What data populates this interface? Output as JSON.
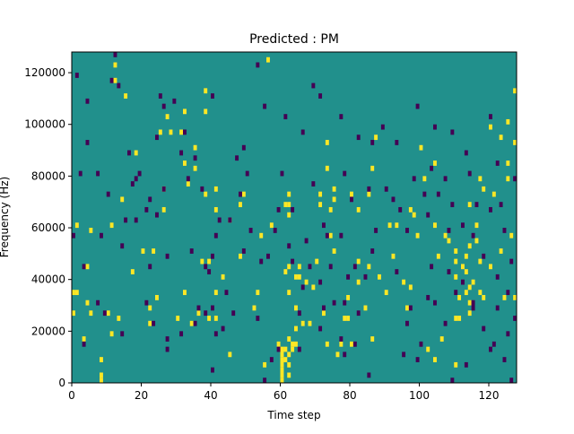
{
  "chart_data": {
    "type": "heatmap",
    "title": "Predicted : PM",
    "xlabel": "Time step",
    "ylabel": "Frequency (Hz)",
    "xlim": [
      0,
      128
    ],
    "ylim": [
      0,
      128000
    ],
    "x_ticks": [
      0,
      20,
      40,
      60,
      80,
      100,
      120
    ],
    "y_ticks": [
      0,
      20000,
      40000,
      60000,
      80000,
      100000,
      120000
    ],
    "x_tick_labels": [
      "0",
      "20",
      "40",
      "60",
      "80",
      "100",
      "120"
    ],
    "y_tick_labels": [
      "0",
      "20000",
      "40000",
      "60000",
      "80000",
      "100000",
      "120000"
    ],
    "n_time_steps": 128,
    "n_freq_bins": 64,
    "freq_bin_hz": 2000,
    "colors": {
      "background": "#21908c",
      "high": "#fde725",
      "low": "#440154"
    },
    "cell_values": {
      "background": 0,
      "high": 1,
      "low": -1
    },
    "high_cells": [
      [
        0,
        13
      ],
      [
        0,
        17
      ],
      [
        1,
        17
      ],
      [
        1,
        30
      ],
      [
        3,
        8
      ],
      [
        4,
        15
      ],
      [
        4,
        22
      ],
      [
        5,
        13
      ],
      [
        5,
        29
      ],
      [
        8,
        0
      ],
      [
        8,
        1
      ],
      [
        8,
        4
      ],
      [
        10,
        13
      ],
      [
        11,
        9
      ],
      [
        11,
        30
      ],
      [
        12,
        58
      ],
      [
        12,
        61
      ],
      [
        13,
        12
      ],
      [
        14,
        35
      ],
      [
        15,
        55
      ],
      [
        17,
        21
      ],
      [
        18,
        44
      ],
      [
        20,
        25
      ],
      [
        22,
        11
      ],
      [
        22,
        14
      ],
      [
        23,
        25
      ],
      [
        24,
        16
      ],
      [
        25,
        48
      ],
      [
        26,
        33
      ],
      [
        26,
        37
      ],
      [
        27,
        51
      ],
      [
        28,
        48
      ],
      [
        30,
        12
      ],
      [
        31,
        48
      ],
      [
        32,
        17
      ],
      [
        32,
        42
      ],
      [
        32,
        52
      ],
      [
        33,
        38
      ],
      [
        34,
        11
      ],
      [
        35,
        41
      ],
      [
        35,
        45
      ],
      [
        36,
        13
      ],
      [
        37,
        23
      ],
      [
        38,
        36
      ],
      [
        38,
        52
      ],
      [
        38,
        56
      ],
      [
        39,
        12
      ],
      [
        39,
        23
      ],
      [
        41,
        33
      ],
      [
        41,
        12
      ],
      [
        41,
        17
      ],
      [
        41,
        37
      ],
      [
        43,
        20
      ],
      [
        45,
        5
      ],
      [
        45,
        31
      ],
      [
        48,
        24
      ],
      [
        48,
        34
      ],
      [
        49,
        36
      ],
      [
        52,
        14
      ],
      [
        53,
        17
      ],
      [
        54,
        28
      ],
      [
        55,
        3
      ],
      [
        56,
        62
      ],
      [
        57,
        30
      ],
      [
        59,
        7
      ],
      [
        60,
        0
      ],
      [
        60,
        1
      ],
      [
        60,
        2
      ],
      [
        60,
        3
      ],
      [
        60,
        4
      ],
      [
        60,
        5
      ],
      [
        60,
        6
      ],
      [
        61,
        4
      ],
      [
        61,
        6
      ],
      [
        61,
        21
      ],
      [
        61,
        34
      ],
      [
        62,
        8
      ],
      [
        62,
        17
      ],
      [
        62,
        22
      ],
      [
        62,
        32
      ],
      [
        62,
        34
      ],
      [
        62,
        36
      ],
      [
        62,
        1
      ],
      [
        62,
        3
      ],
      [
        62,
        5
      ],
      [
        63,
        6
      ],
      [
        63,
        7
      ],
      [
        64,
        7
      ],
      [
        64,
        10
      ],
      [
        64,
        14
      ],
      [
        64,
        20
      ],
      [
        65,
        20
      ],
      [
        65,
        22
      ],
      [
        66,
        11
      ],
      [
        67,
        19
      ],
      [
        68,
        11
      ],
      [
        69,
        18
      ],
      [
        70,
        23
      ],
      [
        71,
        34
      ],
      [
        71,
        36
      ],
      [
        72,
        13
      ],
      [
        73,
        41
      ],
      [
        73,
        46
      ],
      [
        73,
        7
      ],
      [
        74,
        28
      ],
      [
        74,
        33
      ],
      [
        75,
        37
      ],
      [
        75,
        25
      ],
      [
        75,
        35
      ],
      [
        76,
        5
      ],
      [
        77,
        7
      ],
      [
        78,
        12
      ],
      [
        79,
        12
      ],
      [
        79,
        16
      ],
      [
        80,
        7
      ],
      [
        80,
        36
      ],
      [
        82,
        23
      ],
      [
        82,
        19
      ],
      [
        82,
        33
      ],
      [
        84,
        14
      ],
      [
        85,
        36
      ],
      [
        85,
        22
      ],
      [
        86,
        41
      ],
      [
        86,
        8
      ],
      [
        87,
        47
      ],
      [
        88,
        20
      ],
      [
        90,
        17
      ],
      [
        91,
        30
      ],
      [
        92,
        24
      ],
      [
        93,
        30
      ],
      [
        95,
        19
      ],
      [
        96,
        14
      ],
      [
        97,
        33
      ],
      [
        97,
        18
      ],
      [
        98,
        32
      ],
      [
        99,
        28
      ],
      [
        100,
        45
      ],
      [
        101,
        39
      ],
      [
        102,
        6
      ],
      [
        104,
        4
      ],
      [
        104,
        30
      ],
      [
        104,
        42
      ],
      [
        105,
        24
      ],
      [
        106,
        8
      ],
      [
        107,
        28
      ],
      [
        108,
        27
      ],
      [
        110,
        3
      ],
      [
        110,
        12
      ],
      [
        110,
        20
      ],
      [
        110,
        23
      ],
      [
        110,
        25
      ],
      [
        111,
        16
      ],
      [
        111,
        12
      ],
      [
        112,
        22
      ],
      [
        113,
        17
      ],
      [
        113,
        21
      ],
      [
        113,
        24
      ],
      [
        114,
        13
      ],
      [
        114,
        15
      ],
      [
        114,
        26
      ],
      [
        114,
        18
      ],
      [
        114,
        34
      ],
      [
        115,
        19
      ],
      [
        116,
        27
      ],
      [
        116,
        30
      ],
      [
        117,
        23
      ],
      [
        117,
        17
      ],
      [
        117,
        39
      ],
      [
        118,
        16
      ],
      [
        118,
        37
      ],
      [
        120,
        22
      ],
      [
        120,
        49
      ],
      [
        121,
        36
      ],
      [
        123,
        47
      ],
      [
        123,
        25
      ],
      [
        124,
        16
      ],
      [
        125,
        42
      ],
      [
        125,
        39
      ],
      [
        125,
        50
      ],
      [
        126,
        28
      ],
      [
        127,
        46
      ],
      [
        127,
        56
      ],
      [
        127,
        16
      ]
    ],
    "low_cells": [
      [
        0,
        28
      ],
      [
        1,
        59
      ],
      [
        2,
        40
      ],
      [
        3,
        22
      ],
      [
        3,
        7
      ],
      [
        4,
        46
      ],
      [
        4,
        54
      ],
      [
        7,
        40
      ],
      [
        7,
        15
      ],
      [
        8,
        28
      ],
      [
        9,
        13
      ],
      [
        10,
        36
      ],
      [
        11,
        58
      ],
      [
        12,
        63
      ],
      [
        13,
        57
      ],
      [
        14,
        9
      ],
      [
        14,
        26
      ],
      [
        15,
        31
      ],
      [
        16,
        44
      ],
      [
        17,
        38
      ],
      [
        18,
        39
      ],
      [
        18,
        31
      ],
      [
        19,
        40
      ],
      [
        21,
        33
      ],
      [
        21,
        15
      ],
      [
        22,
        35
      ],
      [
        22,
        22
      ],
      [
        23,
        11
      ],
      [
        24,
        32
      ],
      [
        24,
        47
      ],
      [
        25,
        55
      ],
      [
        26,
        37
      ],
      [
        26,
        53
      ],
      [
        27,
        6
      ],
      [
        27,
        8
      ],
      [
        27,
        24
      ],
      [
        29,
        54
      ],
      [
        31,
        44
      ],
      [
        31,
        9
      ],
      [
        32,
        48
      ],
      [
        33,
        39
      ],
      [
        34,
        25
      ],
      [
        35,
        11
      ],
      [
        35,
        43
      ],
      [
        36,
        14
      ],
      [
        37,
        37
      ],
      [
        38,
        13
      ],
      [
        38,
        22
      ],
      [
        39,
        21
      ],
      [
        40,
        2
      ],
      [
        40,
        14
      ],
      [
        40,
        24
      ],
      [
        40,
        55
      ],
      [
        41,
        9
      ],
      [
        41,
        28
      ],
      [
        42,
        31
      ],
      [
        43,
        10
      ],
      [
        44,
        17
      ],
      [
        45,
        31
      ],
      [
        46,
        13
      ],
      [
        47,
        43
      ],
      [
        48,
        36
      ],
      [
        49,
        25
      ],
      [
        49,
        45
      ],
      [
        50,
        40
      ],
      [
        51,
        29
      ],
      [
        53,
        61
      ],
      [
        53,
        12
      ],
      [
        54,
        23
      ],
      [
        55,
        53
      ],
      [
        55,
        0
      ],
      [
        56,
        24
      ],
      [
        57,
        4
      ],
      [
        58,
        29
      ],
      [
        59,
        33
      ],
      [
        59,
        6
      ],
      [
        60,
        40
      ],
      [
        61,
        51
      ],
      [
        62,
        26
      ],
      [
        63,
        33
      ],
      [
        63,
        23
      ],
      [
        65,
        6
      ],
      [
        65,
        13
      ],
      [
        66,
        48
      ],
      [
        66,
        18
      ],
      [
        67,
        27
      ],
      [
        68,
        22
      ],
      [
        69,
        38
      ],
      [
        69,
        57
      ],
      [
        71,
        10
      ],
      [
        71,
        19
      ],
      [
        71,
        55
      ],
      [
        72,
        14
      ],
      [
        72,
        30
      ],
      [
        73,
        28
      ],
      [
        74,
        22
      ],
      [
        75,
        15
      ],
      [
        77,
        51
      ],
      [
        77,
        28
      ],
      [
        77,
        8
      ],
      [
        78,
        5
      ],
      [
        78,
        40
      ],
      [
        78,
        15
      ],
      [
        79,
        20
      ],
      [
        80,
        35
      ],
      [
        81,
        22
      ],
      [
        81,
        7
      ],
      [
        82,
        13
      ],
      [
        82,
        47
      ],
      [
        84,
        20
      ],
      [
        85,
        37
      ],
      [
        85,
        1
      ],
      [
        86,
        46
      ],
      [
        86,
        25
      ],
      [
        87,
        29
      ],
      [
        89,
        49
      ],
      [
        90,
        37
      ],
      [
        92,
        35
      ],
      [
        93,
        46
      ],
      [
        93,
        21
      ],
      [
        94,
        33
      ],
      [
        95,
        5
      ],
      [
        96,
        11
      ],
      [
        96,
        29
      ],
      [
        97,
        14
      ],
      [
        98,
        39
      ],
      [
        99,
        4
      ],
      [
        99,
        53
      ],
      [
        100,
        7
      ],
      [
        101,
        36
      ],
      [
        102,
        32
      ],
      [
        102,
        16
      ],
      [
        103,
        41
      ],
      [
        103,
        22
      ],
      [
        104,
        15
      ],
      [
        104,
        49
      ],
      [
        105,
        36
      ],
      [
        107,
        39
      ],
      [
        107,
        11
      ],
      [
        108,
        21
      ],
      [
        108,
        29
      ],
      [
        109,
        34
      ],
      [
        109,
        0
      ],
      [
        109,
        48
      ],
      [
        110,
        17
      ],
      [
        112,
        30
      ],
      [
        112,
        19
      ],
      [
        113,
        3
      ],
      [
        113,
        44
      ],
      [
        114,
        40
      ],
      [
        115,
        15
      ],
      [
        115,
        14
      ],
      [
        115,
        28
      ],
      [
        116,
        34
      ],
      [
        118,
        24
      ],
      [
        118,
        10
      ],
      [
        120,
        6
      ],
      [
        120,
        33
      ],
      [
        120,
        51
      ],
      [
        121,
        7
      ],
      [
        122,
        14
      ],
      [
        122,
        20
      ],
      [
        122,
        42
      ],
      [
        123,
        34
      ],
      [
        124,
        4
      ],
      [
        124,
        29
      ],
      [
        125,
        17
      ],
      [
        125,
        9
      ],
      [
        126,
        23
      ],
      [
        126,
        0
      ],
      [
        127,
        39
      ],
      [
        127,
        12
      ]
    ]
  }
}
